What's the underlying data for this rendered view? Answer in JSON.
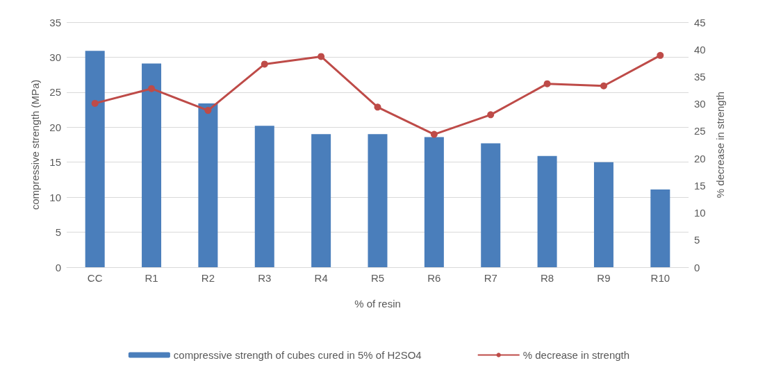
{
  "chart_data": {
    "type": "bar",
    "xlabel": "% of resin",
    "ylabel": "compressive strength (MPa)",
    "y2label": "% decrease in strength",
    "categories": [
      "CC",
      "R1",
      "R2",
      "R3",
      "R4",
      "R5",
      "R6",
      "R7",
      "R8",
      "R9",
      "R10"
    ],
    "series": [
      {
        "name": "compressive strength of cubes cured in 5% of H2SO4",
        "color": "#4a7ebb",
        "values": [
          30.9,
          29.1,
          23.4,
          20.2,
          19.0,
          19.0,
          18.6,
          17.7,
          15.9,
          15.0,
          11.1
        ]
      },
      {
        "name": "% decrease in strength",
        "type": "line",
        "axis": "y2",
        "color": "#be4b48",
        "marker": "circle",
        "values": [
          30.1,
          32.8,
          28.8,
          37.3,
          38.7,
          29.4,
          24.4,
          28.0,
          33.7,
          33.3,
          38.9
        ]
      }
    ],
    "ylim": [
      0,
      35
    ],
    "yticks": [
      0,
      5,
      10,
      15,
      20,
      25,
      30,
      35
    ],
    "y2lim": [
      0,
      45
    ],
    "y2ticks": [
      0,
      5,
      10,
      15,
      20,
      25,
      30,
      35,
      40,
      45
    ],
    "grid": "y",
    "legend": "bottom"
  }
}
